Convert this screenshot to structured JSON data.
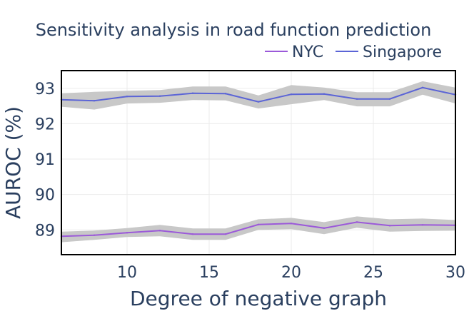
{
  "chart_data": {
    "type": "line",
    "title": "Sensitivity analysis in road function prediction",
    "xlabel": "Degree of negative graph",
    "ylabel": "AUROC (%)",
    "xlim": [
      6,
      30
    ],
    "ylim": [
      88.3,
      93.5
    ],
    "xticks": [
      10,
      15,
      20,
      25,
      30
    ],
    "yticks": [
      89,
      90,
      91,
      92,
      93
    ],
    "x": [
      6,
      8,
      10,
      12,
      14,
      16,
      18,
      20,
      22,
      24,
      26,
      28,
      30
    ],
    "legend_position": "top-right",
    "band_color": "#c8c8c8",
    "series": [
      {
        "name": "NYC",
        "color": "#9b59d9",
        "values": [
          88.82,
          88.85,
          88.92,
          88.98,
          88.88,
          88.88,
          89.15,
          89.18,
          89.05,
          89.22,
          89.12,
          89.14,
          89.13
        ],
        "lower": [
          88.65,
          88.72,
          88.8,
          88.82,
          88.72,
          88.72,
          89.0,
          89.02,
          88.88,
          89.06,
          88.95,
          88.97,
          88.98
        ],
        "upper": [
          88.95,
          88.98,
          89.05,
          89.14,
          89.04,
          89.04,
          89.3,
          89.34,
          89.22,
          89.38,
          89.3,
          89.32,
          89.28
        ]
      },
      {
        "name": "Singapore",
        "color": "#5b64d6",
        "values": [
          92.68,
          92.65,
          92.77,
          92.78,
          92.86,
          92.85,
          92.62,
          92.83,
          92.84,
          92.7,
          92.7,
          93.02,
          92.82
        ],
        "lower": [
          92.48,
          92.4,
          92.57,
          92.59,
          92.67,
          92.66,
          92.43,
          92.55,
          92.67,
          92.49,
          92.49,
          92.82,
          92.57
        ],
        "upper": [
          92.86,
          92.9,
          92.93,
          92.95,
          93.05,
          93.05,
          92.8,
          93.09,
          93.02,
          92.89,
          92.89,
          93.2,
          93.02
        ]
      }
    ]
  }
}
